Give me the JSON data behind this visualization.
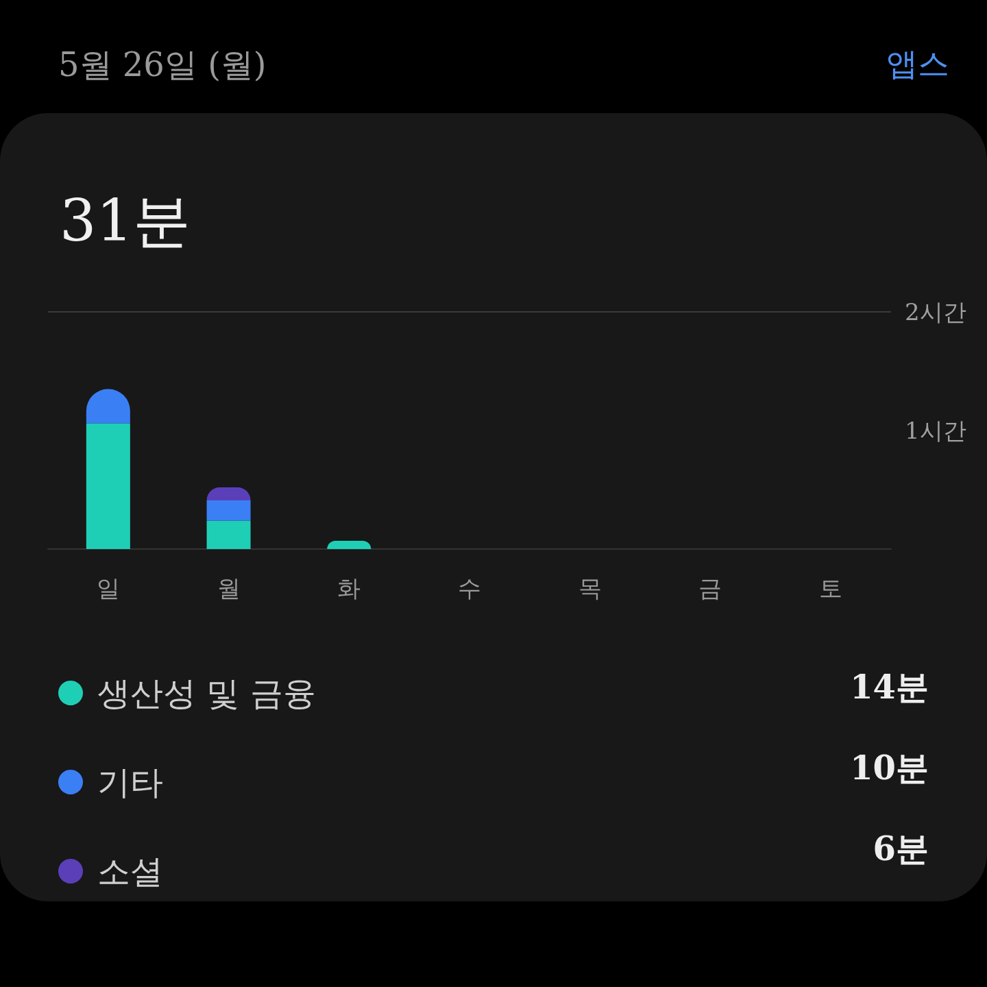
{
  "chart_data": {
    "type": "bar",
    "stacked": true,
    "title": "31분",
    "subtitle": "5월 26일 (월)",
    "categories": [
      "일",
      "월",
      "화",
      "수",
      "목",
      "금",
      "토"
    ],
    "series": [
      {
        "name": "생산성 및 금융",
        "color": "#1fcfb5",
        "values": [
          1.06,
          0.24,
          0.07,
          0,
          0,
          0,
          0
        ]
      },
      {
        "name": "기타",
        "color": "#3b7ff5",
        "values": [
          0.29,
          0.17,
          0,
          0,
          0,
          0,
          0
        ]
      },
      {
        "name": "소셜",
        "color": "#5b3fb8",
        "values": [
          0,
          0.11,
          0,
          0,
          0,
          0,
          0
        ]
      }
    ],
    "ylim": [
      0,
      2
    ],
    "yticks": [
      {
        "value": 1,
        "label": "1시간"
      },
      {
        "value": 2,
        "label": "2시간"
      }
    ],
    "ref_lines": [
      {
        "axis": "y",
        "value": 2,
        "label": null,
        "color": "#3a3a3a"
      }
    ],
    "grid": false,
    "legend": "bottom left",
    "annotations": [
      "앱스",
      "14분",
      "10분",
      "6분"
    ]
  }
}
